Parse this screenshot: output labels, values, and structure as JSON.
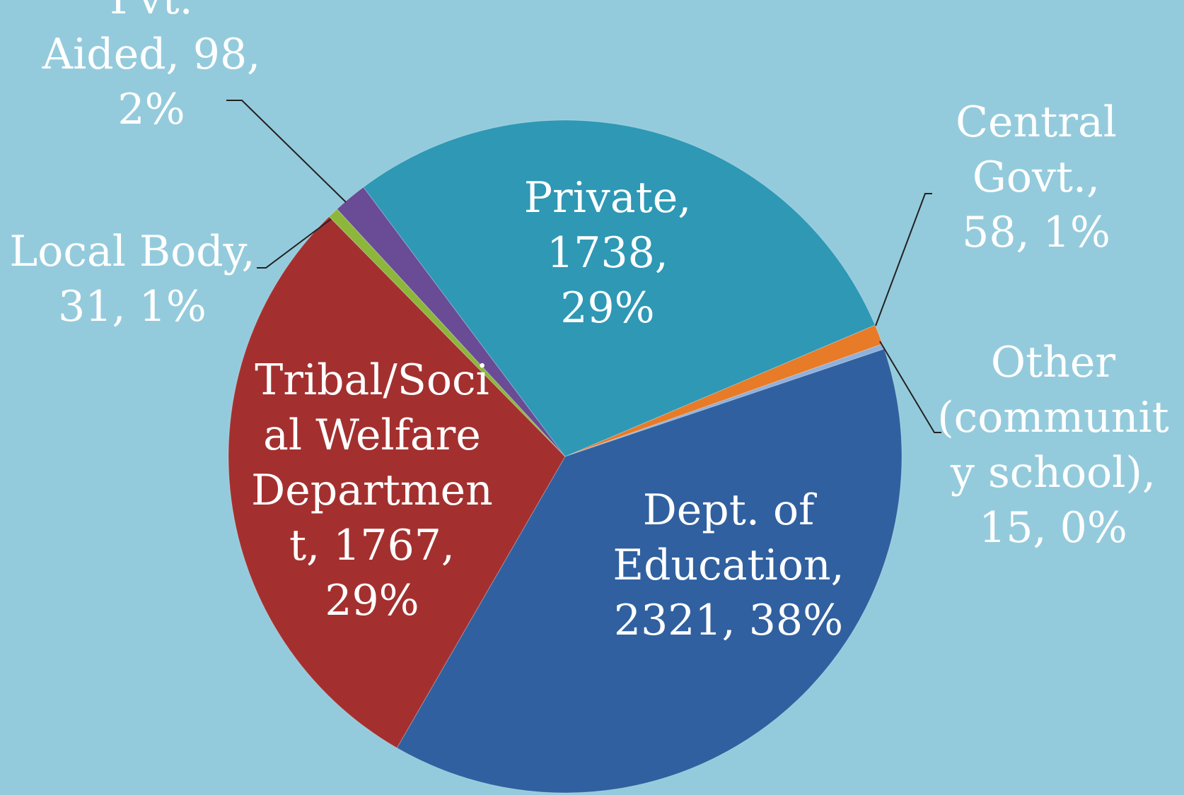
{
  "chart_data": {
    "type": "pie",
    "categories": [
      "Central Govt.,",
      "Other (community school),",
      "Dept. of Education,",
      "Tribal/Social Welfare Department,",
      "Local Body,",
      "Pvt. Aided,",
      "Private,"
    ],
    "values": [
      58,
      15,
      2321,
      1767,
      31,
      98,
      1738
    ],
    "value_labels": [
      "58, 1%",
      "15, 0%",
      "2321, 38%",
      "1767, 29%",
      "31, 1%",
      "98, 2%",
      "1738, 29%"
    ],
    "colors": [
      "#e77b28",
      "#8eb0de",
      "#30609f",
      "#a3302f",
      "#8cb73a",
      "#6a4b95",
      "#2e98b5"
    ]
  }
}
